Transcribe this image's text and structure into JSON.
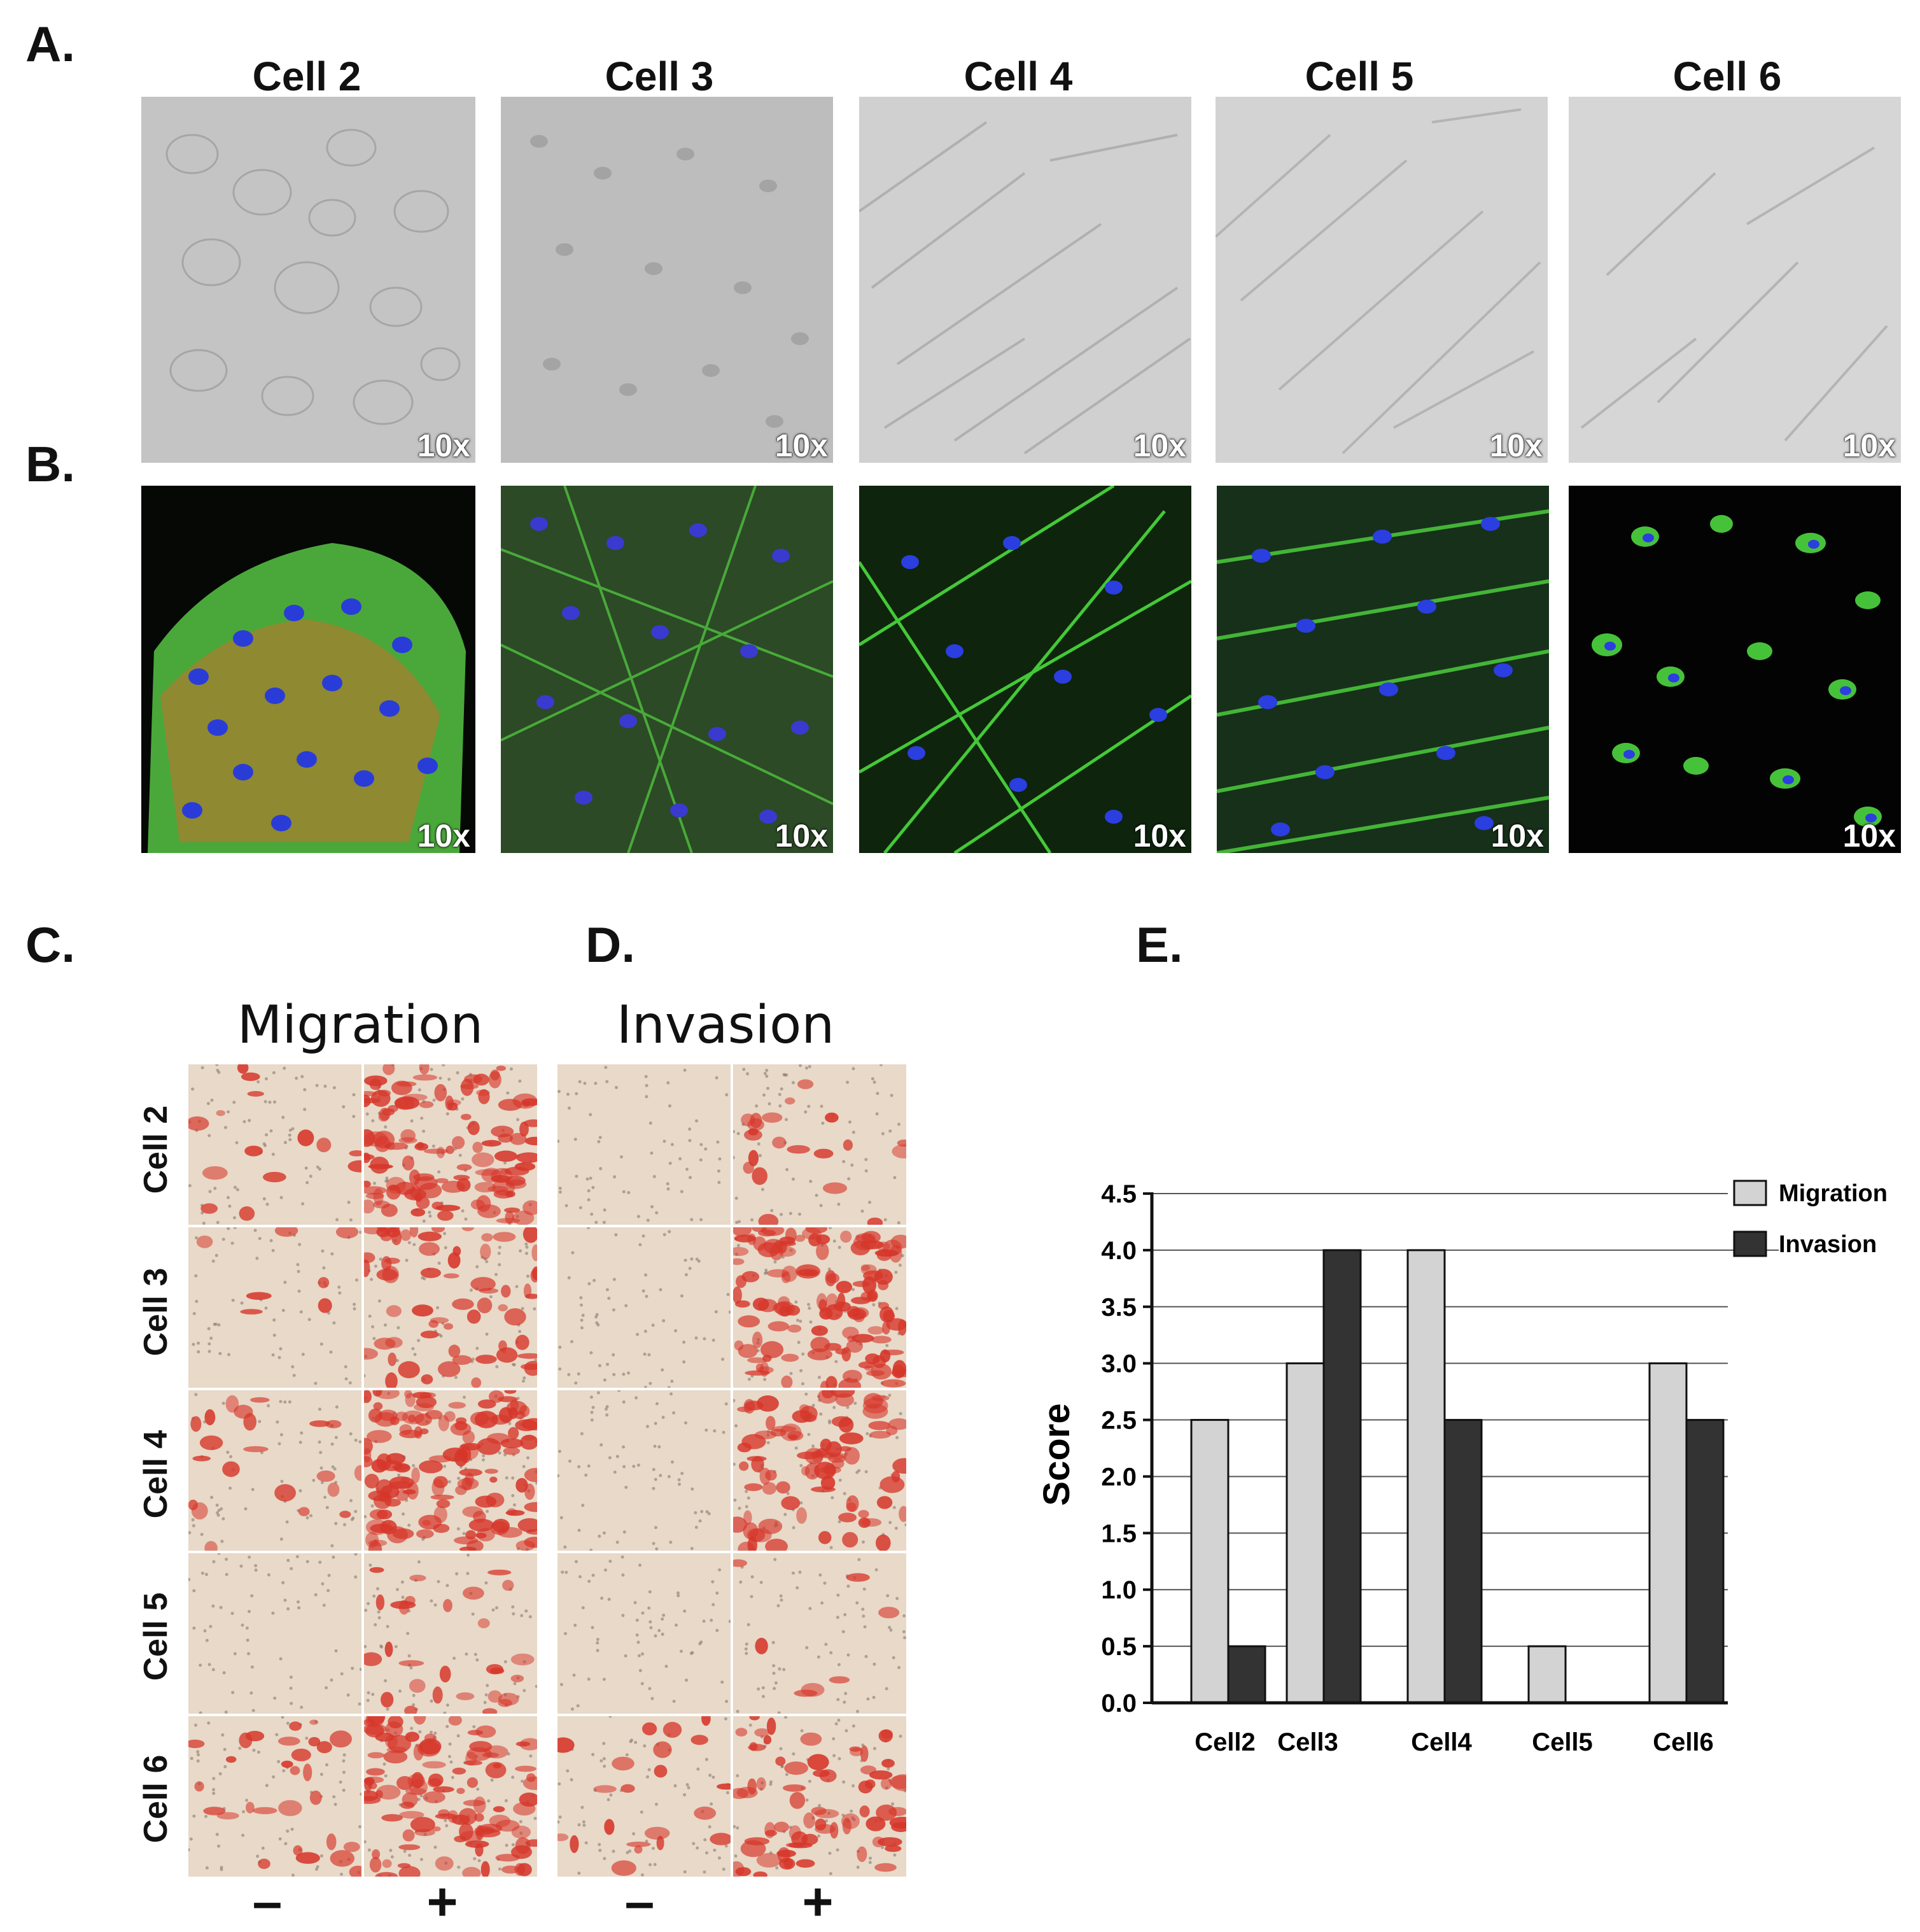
{
  "panel_labels": {
    "a": "A.",
    "b": "B.",
    "c": "C.",
    "d": "D.",
    "e": "E."
  },
  "top_columns": [
    "Cell 2",
    "Cell 3",
    "Cell 4",
    "Cell 5",
    "Cell 6"
  ],
  "magnification": "10x",
  "migration_title": "Migration",
  "invasion_title": "Invasion",
  "row_labels": [
    "Cell 2",
    "Cell 3",
    "Cell 4",
    "Cell 5",
    "Cell 6"
  ],
  "condition_labels": {
    "minus": "–",
    "plus": "+"
  },
  "colors": {
    "brightfield": "#c9c9c9",
    "fluor_green": "#3cc43c",
    "fluor_blue": "#2a3cd8",
    "fluor_red": "#d8341e",
    "stain_bg": "#e8d9c8",
    "stain_red": "#d6362a",
    "migration_bar": "#d3d3d3",
    "invasion_bar": "#333333"
  },
  "chart_data": {
    "type": "bar",
    "categories": [
      "Cell2",
      "Cell3",
      "Cell4",
      "Cell5",
      "Cell6"
    ],
    "series": [
      {
        "name": "Migration",
        "values": [
          2.5,
          3.0,
          4.0,
          0.5,
          3.0
        ]
      },
      {
        "name": "Invasion",
        "values": [
          0.5,
          4.0,
          2.5,
          0.0,
          2.5
        ]
      }
    ],
    "ylabel": "Score",
    "ylim": [
      0,
      4.5
    ],
    "yticks": [
      "0.0",
      "0.5",
      "1.0",
      "1.5",
      "2.0",
      "2.5",
      "3.0",
      "3.5",
      "4.0",
      "4.5"
    ],
    "grid": true,
    "legend": "top-right"
  }
}
